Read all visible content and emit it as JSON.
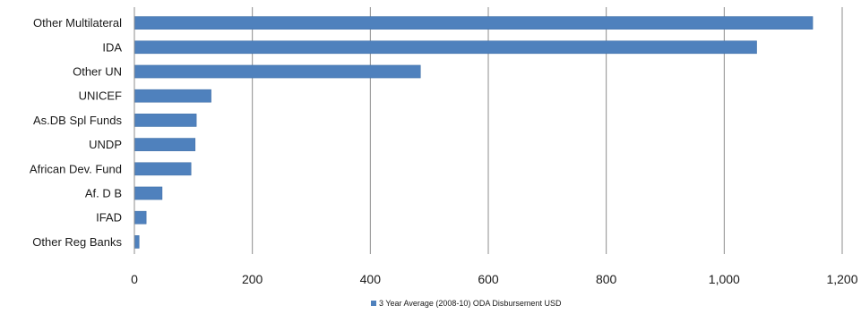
{
  "chart_data": {
    "type": "bar",
    "orientation": "horizontal",
    "categories": [
      "Other Multilateral",
      "IDA",
      "Other UN",
      "UNICEF",
      "As.DB Spl Funds",
      "UNDP",
      "African Dev. Fund",
      "Af. D B",
      "IFAD",
      "Other Reg Banks"
    ],
    "series": [
      {
        "name": "3 Year Average (2008-10) ODA Disbursement USD",
        "values": [
          1150,
          1055,
          485,
          130,
          105,
          103,
          96,
          47,
          20,
          8
        ]
      }
    ],
    "xlim": [
      0,
      1200
    ],
    "xticks": [
      0,
      200,
      400,
      600,
      800,
      1000,
      1200
    ],
    "xtick_labels": [
      "0",
      "200",
      "400",
      "600",
      "800",
      "1,000",
      "1,200"
    ],
    "grid": "vertical",
    "legend_position": "bottom-center",
    "bar_color": "#4f81bd",
    "bar_edge_color": "#3a6aa3",
    "grid_color": "#8c8c8c"
  }
}
